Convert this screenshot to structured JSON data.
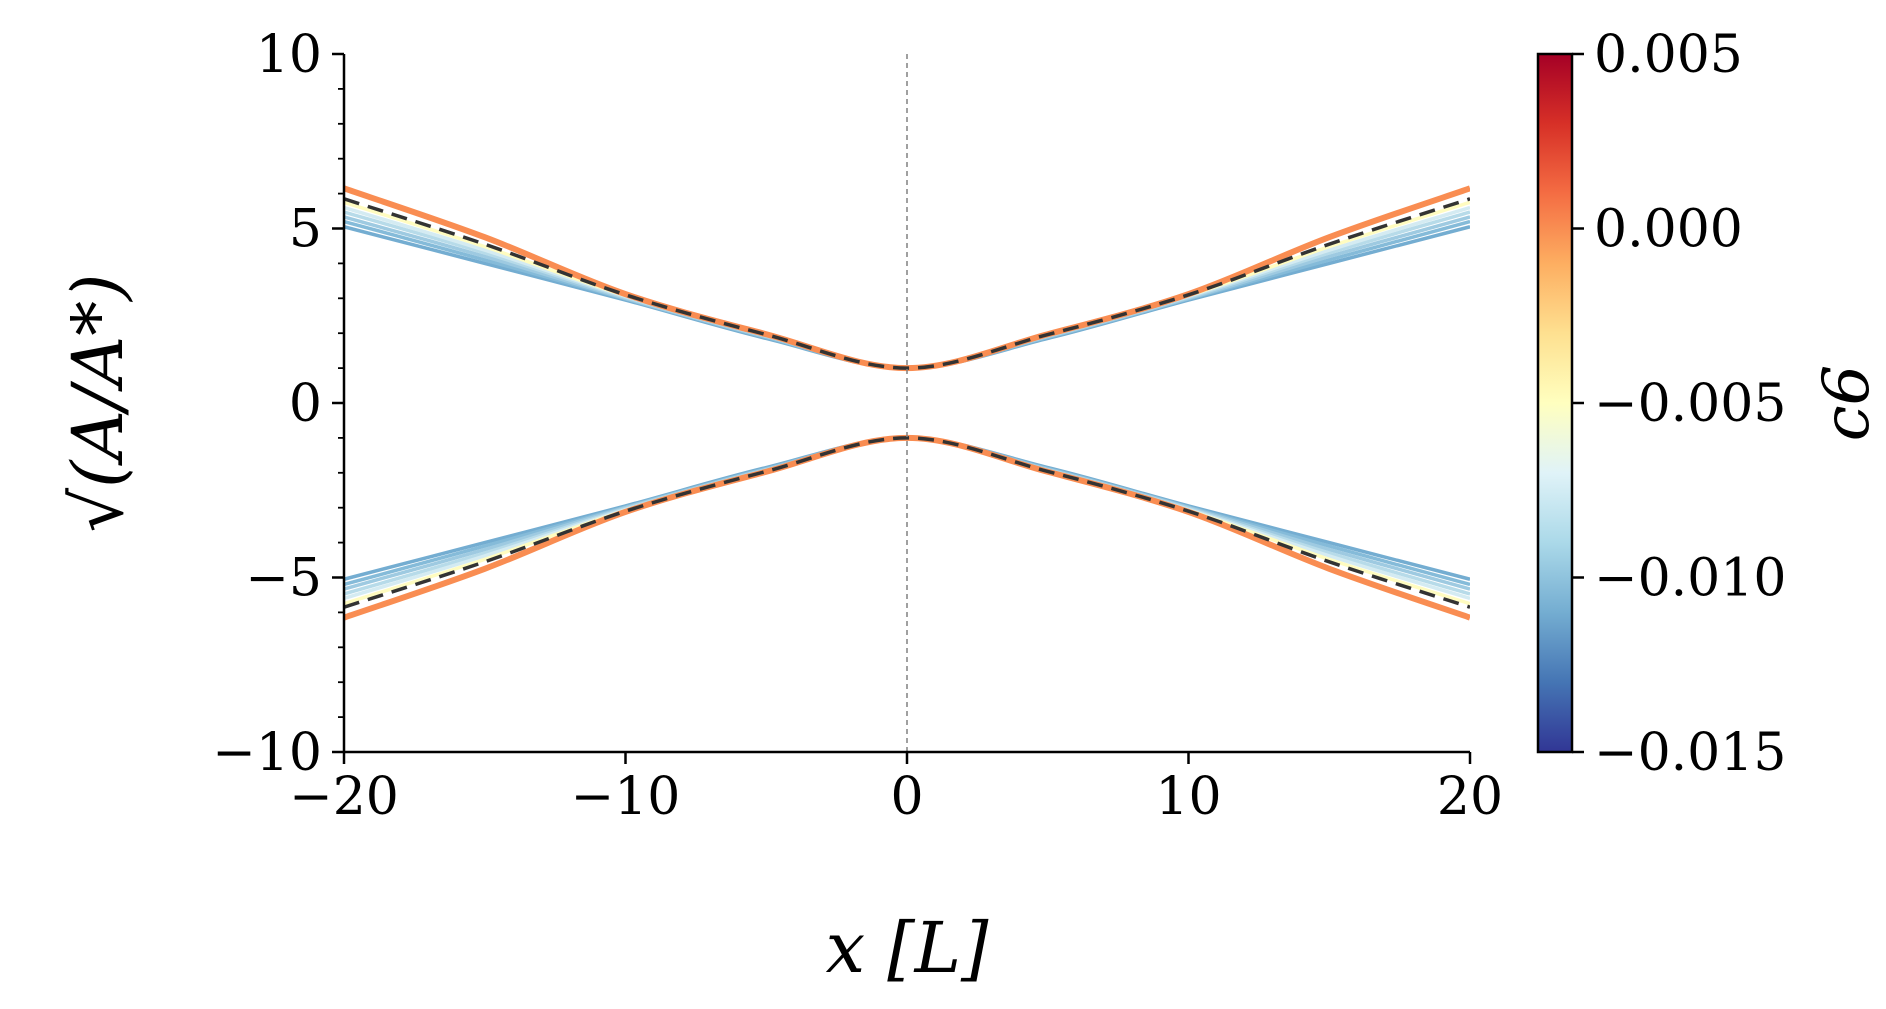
{
  "chart_data": {
    "type": "line",
    "xlabel": "x [L]",
    "ylabel": "√(A/A*)",
    "xlim": [
      -20,
      20
    ],
    "ylim": [
      -10,
      10
    ],
    "x_ticks": [
      "−20",
      "−10",
      "0",
      "10",
      "20"
    ],
    "y_ticks": [
      "10",
      "5",
      "0",
      "−5",
      "−10"
    ],
    "x_tick_values": [
      -20,
      -10,
      0,
      10,
      20
    ],
    "y_tick_values": [
      10,
      5,
      0,
      -5,
      -10
    ],
    "vertical_reference_x": 0,
    "grid": false,
    "colorbar": {
      "label": "c6",
      "range": [
        -0.015,
        0.005
      ],
      "ticks": [
        "0.005",
        "0.000",
        "−0.005",
        "−0.010",
        "−0.015"
      ],
      "tick_values": [
        0.005,
        0.0,
        -0.005,
        -0.01,
        -0.015
      ],
      "colormap": [
        "#313695",
        "#4575b4",
        "#74add1",
        "#abd9e9",
        "#e0f3f8",
        "#ffffbf",
        "#fee090",
        "#fdae61",
        "#f46d43",
        "#d73027",
        "#a50026"
      ]
    },
    "series": [
      {
        "c6": -0.01,
        "color": "#74add1",
        "x": [
          -20,
          -15,
          -10,
          -5,
          0,
          5,
          10,
          15,
          20
        ],
        "y": [
          5.05,
          4.0,
          2.95,
          1.85,
          1.0,
          1.85,
          2.95,
          4.0,
          5.05
        ]
      },
      {
        "c6": -0.009,
        "color": "#85bbd9",
        "x": [
          -20,
          -15,
          -10,
          -5,
          0,
          5,
          10,
          15,
          20
        ],
        "y": [
          5.2,
          4.1,
          2.98,
          1.88,
          1.0,
          1.88,
          2.98,
          4.1,
          5.2
        ]
      },
      {
        "c6": -0.008,
        "color": "#9ecae1",
        "x": [
          -20,
          -15,
          -10,
          -5,
          0,
          5,
          10,
          15,
          20
        ],
        "y": [
          5.33,
          4.2,
          3.0,
          1.9,
          1.0,
          1.9,
          3.0,
          4.2,
          5.33
        ]
      },
      {
        "c6": -0.007,
        "color": "#b7dbe9",
        "x": [
          -20,
          -15,
          -10,
          -5,
          0,
          5,
          10,
          15,
          20
        ],
        "y": [
          5.47,
          4.3,
          3.03,
          1.92,
          1.0,
          1.92,
          3.03,
          4.3,
          5.47
        ]
      },
      {
        "c6": -0.006,
        "color": "#d4ebf2",
        "x": [
          -20,
          -15,
          -10,
          -5,
          0,
          5,
          10,
          15,
          20
        ],
        "y": [
          5.6,
          4.38,
          3.06,
          1.94,
          1.0,
          1.94,
          3.06,
          4.38,
          5.6
        ]
      },
      {
        "c6": -0.005,
        "color": "#fffcc0",
        "x": [
          -20,
          -15,
          -10,
          -5,
          0,
          5,
          10,
          15,
          20
        ],
        "y": [
          5.75,
          4.48,
          3.08,
          1.95,
          1.0,
          1.95,
          3.08,
          4.48,
          5.75
        ]
      },
      {
        "c6": 0.0,
        "color": "#f98d52",
        "x": [
          -20,
          -15,
          -10,
          -5,
          0,
          5,
          10,
          15,
          20
        ],
        "y": [
          6.15,
          4.75,
          3.12,
          1.97,
          1.0,
          1.97,
          3.12,
          4.75,
          6.15
        ]
      }
    ],
    "reference_curve": {
      "style": "dashed",
      "color": "#333333",
      "x": [
        -20,
        -15,
        -10,
        -5,
        0,
        5,
        10,
        15,
        20
      ],
      "y": [
        5.85,
        4.55,
        3.1,
        1.96,
        1.0,
        1.96,
        3.1,
        4.55,
        5.85
      ]
    },
    "mirrored": true
  }
}
